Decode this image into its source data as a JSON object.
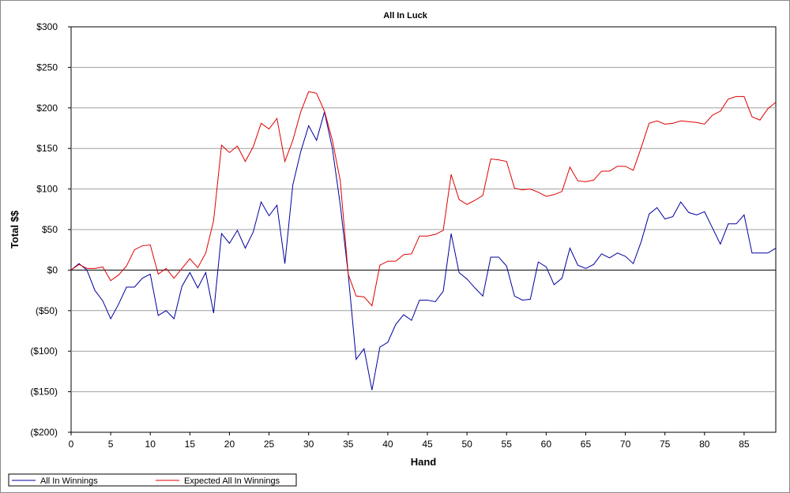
{
  "chart_data": {
    "type": "line",
    "title": "All In Luck",
    "xlabel": "Hand",
    "ylabel": "Total $$",
    "xlim": [
      0,
      89
    ],
    "ylim": [
      -200,
      300
    ],
    "x_ticks": [
      0,
      5,
      10,
      15,
      20,
      25,
      30,
      35,
      40,
      45,
      50,
      55,
      60,
      65,
      70,
      75,
      80,
      85
    ],
    "y_ticks": [
      {
        "value": 300,
        "label": "$300"
      },
      {
        "value": 250,
        "label": "$250"
      },
      {
        "value": 200,
        "label": "$200"
      },
      {
        "value": 150,
        "label": "$150"
      },
      {
        "value": 100,
        "label": "$100"
      },
      {
        "value": 50,
        "label": "$50"
      },
      {
        "value": 0,
        "label": "$0"
      },
      {
        "value": -50,
        "label": "($50)"
      },
      {
        "value": -100,
        "label": "($100)"
      },
      {
        "value": -150,
        "label": "($150)"
      },
      {
        "value": -200,
        "label": "($200)"
      }
    ],
    "grid": "horizontal",
    "legend_position": "bottom-left",
    "series": [
      {
        "name": "All In Winnings",
        "color": "#0000a0",
        "values": [
          0,
          8,
          0,
          -25,
          -38,
          -60,
          -42,
          -21,
          -21,
          -10,
          -5,
          -56,
          -50,
          -60,
          -20,
          -3,
          -22,
          -3,
          -53,
          45,
          33,
          49,
          27,
          47,
          84,
          67,
          80,
          8,
          105,
          146,
          178,
          160,
          195,
          150,
          80,
          -5,
          -110,
          -97,
          -148,
          -95,
          -89,
          -67,
          -55,
          -62,
          -37,
          -37,
          -39,
          -26,
          45,
          -3,
          -11,
          -22,
          -32,
          16,
          16,
          5,
          -32,
          -37,
          -36,
          10,
          4,
          -18,
          -10,
          27,
          6,
          2,
          7,
          20,
          15,
          21,
          17,
          8,
          35,
          69,
          77,
          63,
          66,
          84,
          71,
          68,
          72,
          52,
          32,
          57,
          57,
          68,
          21,
          21,
          21,
          27
        ]
      },
      {
        "name": "Expected All In Winnings",
        "color": "#e00000",
        "values": [
          0,
          7,
          2,
          2,
          4,
          -13,
          -6,
          5,
          25,
          30,
          31,
          -5,
          2,
          -10,
          2,
          14,
          3,
          21,
          61,
          154,
          145,
          153,
          134,
          152,
          181,
          174,
          187,
          134,
          160,
          195,
          220,
          218,
          196,
          160,
          110,
          -5,
          -32,
          -33,
          -44,
          6,
          11,
          11,
          19,
          20,
          42,
          42,
          44,
          49,
          118,
          87,
          81,
          86,
          92,
          137,
          136,
          134,
          101,
          99,
          100,
          96,
          91,
          93,
          97,
          127,
          110,
          109,
          111,
          122,
          122,
          128,
          128,
          123,
          151,
          181,
          184,
          180,
          181,
          184,
          183,
          182,
          180,
          191,
          196,
          211,
          214,
          214,
          189,
          185,
          199,
          207
        ]
      }
    ]
  }
}
